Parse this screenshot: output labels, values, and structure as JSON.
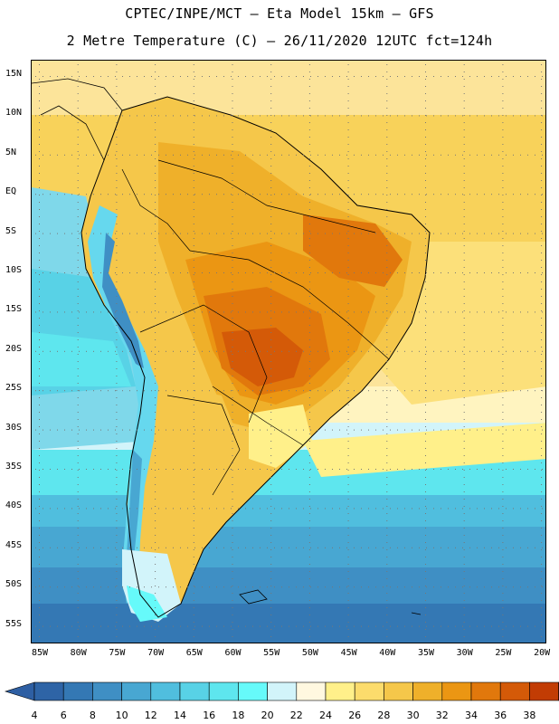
{
  "header": {
    "line1": "CPTEC/INPE/MCT –  Eta Model 15km – GFS",
    "line2": "2 Metre Temperature (C) – 26/11/2020 12UTC fct=124h"
  },
  "map": {
    "lat_labels": [
      "15N",
      "10N",
      "5N",
      "EQ",
      "5S",
      "10S",
      "15S",
      "20S",
      "25S",
      "30S",
      "35S",
      "40S",
      "45S",
      "50S",
      "55S"
    ],
    "lon_labels": [
      "85W",
      "80W",
      "75W",
      "70W",
      "65W",
      "60W",
      "55W",
      "50W",
      "45W",
      "40W",
      "35W",
      "30W",
      "25W",
      "20W"
    ]
  },
  "colorbar": {
    "labels": [
      "4",
      "6",
      "8",
      "10",
      "12",
      "14",
      "16",
      "18",
      "20",
      "22",
      "24",
      "26",
      "28",
      "30",
      "32",
      "34",
      "36",
      "38"
    ],
    "colors": [
      "#2e64a6",
      "#3478b4",
      "#3f8fc4",
      "#48a7d2",
      "#50bede",
      "#58d2e6",
      "#5ee6ee",
      "#66fafa",
      "#d2f4fa",
      "#fff8e0",
      "#fff08a",
      "#fcdc6c",
      "#f5c74a",
      "#efb02a",
      "#eb9613",
      "#e1780c",
      "#d45a08",
      "#c23c04"
    ],
    "left_arrow_color": "#2e5fa3",
    "right_arrow_color": "#b83004"
  }
}
